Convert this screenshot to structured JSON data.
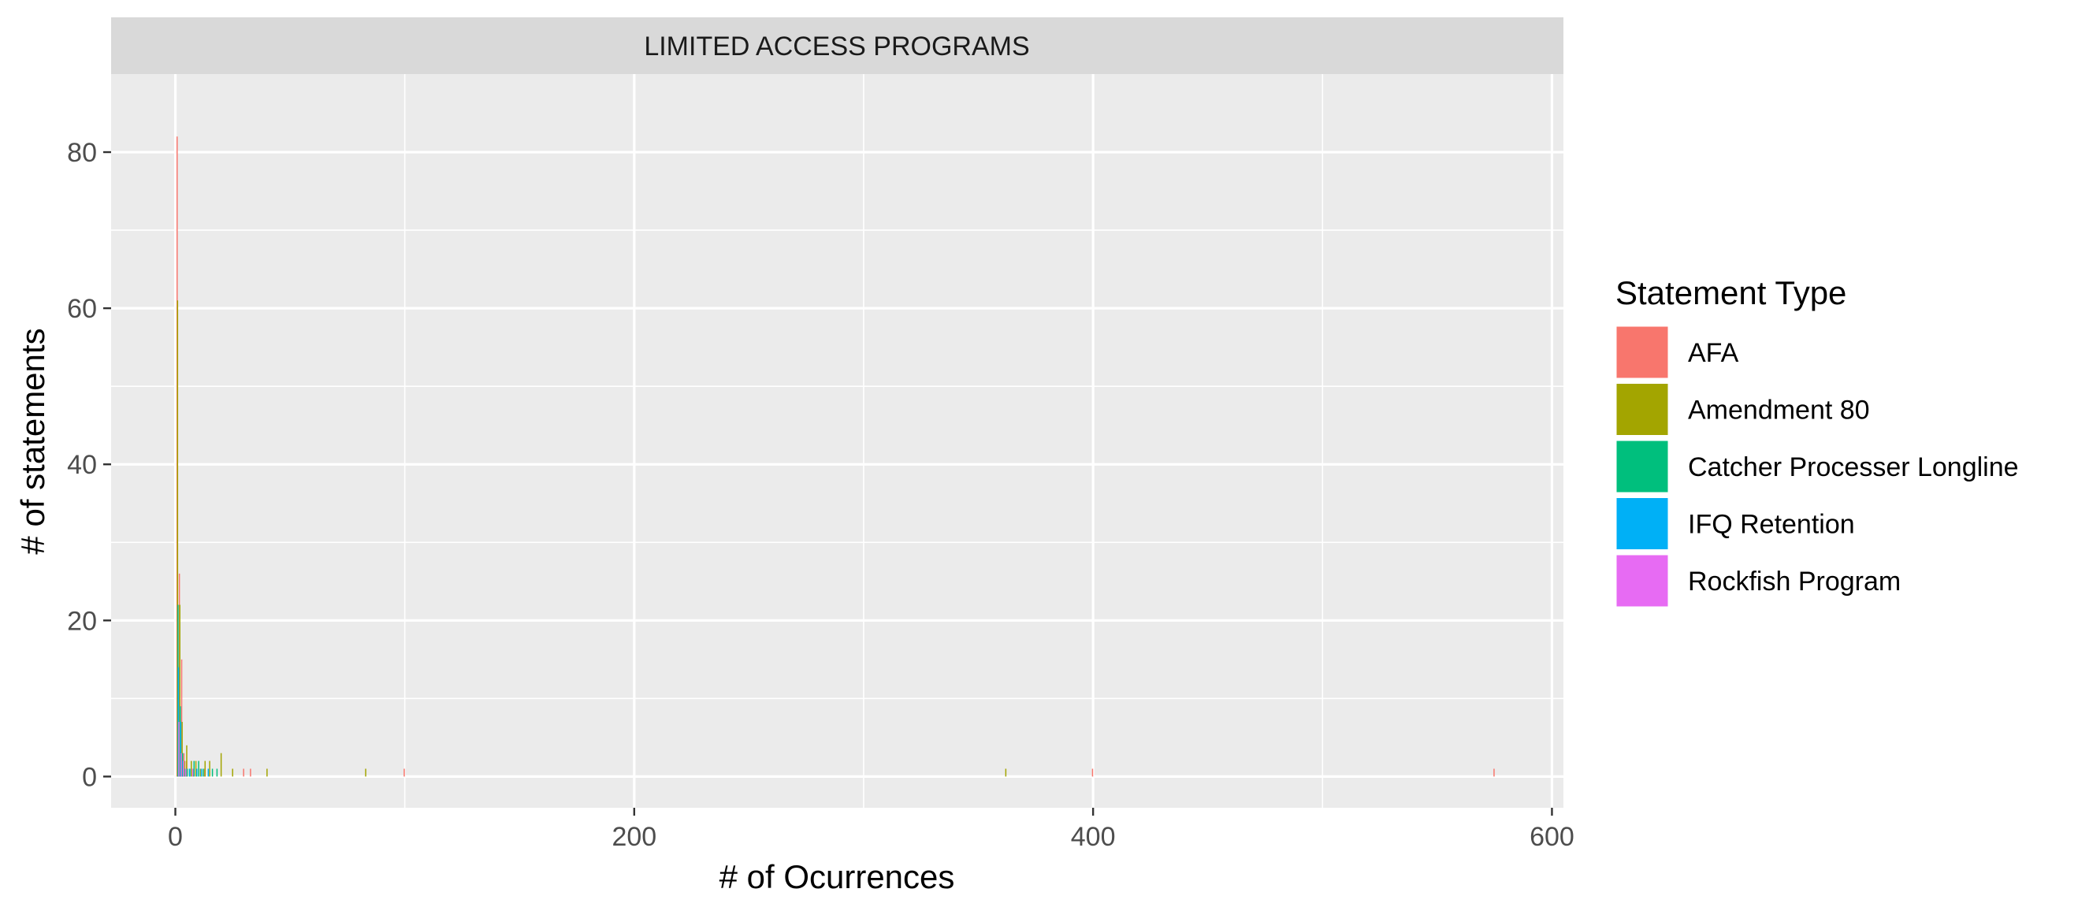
{
  "chart_data": {
    "type": "bar",
    "subtype": "histogram",
    "facet_label": "LIMITED ACCESS PROGRAMS",
    "xlabel": "# of Ocurrences",
    "ylabel": "# of statements",
    "xlim": [
      -28,
      605
    ],
    "ylim": [
      -4,
      90
    ],
    "x_ticks": [
      0,
      200,
      400,
      600
    ],
    "x_tick_labels": [
      "0",
      "200",
      "400",
      "600"
    ],
    "y_ticks": [
      0,
      20,
      40,
      60,
      80
    ],
    "y_tick_labels": [
      "0",
      "20",
      "40",
      "60",
      "80"
    ],
    "bin_width": 1,
    "grid": true,
    "legend": {
      "title": "Statement Type",
      "placement": "right",
      "entries": [
        "AFA",
        "Amendment 80",
        "Catcher Processer Longline",
        "IFQ Retention",
        "Rockfish Program"
      ]
    },
    "series": [
      {
        "name": "AFA",
        "color": "#F8766D",
        "bars": [
          {
            "x": 1,
            "y": 82
          },
          {
            "x": 2,
            "y": 26
          },
          {
            "x": 3,
            "y": 15
          },
          {
            "x": 4,
            "y": 3
          },
          {
            "x": 5,
            "y": 2
          },
          {
            "x": 8,
            "y": 1
          },
          {
            "x": 13,
            "y": 1
          },
          {
            "x": 30,
            "y": 1
          },
          {
            "x": 33,
            "y": 1
          },
          {
            "x": 100,
            "y": 1
          },
          {
            "x": 400,
            "y": 1
          },
          {
            "x": 575,
            "y": 1
          }
        ]
      },
      {
        "name": "Amendment 80",
        "color": "#A3A500",
        "bars": [
          {
            "x": 1,
            "y": 61
          },
          {
            "x": 2,
            "y": 22
          },
          {
            "x": 3,
            "y": 7
          },
          {
            "x": 4,
            "y": 2
          },
          {
            "x": 5,
            "y": 4
          },
          {
            "x": 7,
            "y": 2
          },
          {
            "x": 9,
            "y": 2
          },
          {
            "x": 11,
            "y": 1
          },
          {
            "x": 13,
            "y": 2
          },
          {
            "x": 15,
            "y": 2
          },
          {
            "x": 20,
            "y": 3
          },
          {
            "x": 25,
            "y": 1
          },
          {
            "x": 40,
            "y": 1
          },
          {
            "x": 83,
            "y": 1
          },
          {
            "x": 362,
            "y": 1
          }
        ]
      },
      {
        "name": "Catcher Processer Longline",
        "color": "#00BF7D",
        "bars": [
          {
            "x": 1,
            "y": 22
          },
          {
            "x": 2,
            "y": 9
          },
          {
            "x": 3,
            "y": 3
          },
          {
            "x": 5,
            "y": 1
          },
          {
            "x": 6,
            "y": 1
          },
          {
            "x": 8,
            "y": 2
          },
          {
            "x": 10,
            "y": 2
          },
          {
            "x": 12,
            "y": 1
          },
          {
            "x": 16,
            "y": 1
          },
          {
            "x": 18,
            "y": 1
          }
        ]
      },
      {
        "name": "IFQ Retention",
        "color": "#00B0F6",
        "bars": [
          {
            "x": 1,
            "y": 14
          },
          {
            "x": 2,
            "y": 7
          },
          {
            "x": 3,
            "y": 2
          },
          {
            "x": 4,
            "y": 1
          },
          {
            "x": 6,
            "y": 1
          },
          {
            "x": 9,
            "y": 1
          },
          {
            "x": 11,
            "y": 1
          },
          {
            "x": 14,
            "y": 1
          }
        ]
      },
      {
        "name": "Rockfish Program",
        "color": "#E76BF3",
        "bars": [
          {
            "x": 1,
            "y": 7
          },
          {
            "x": 2,
            "y": 3
          },
          {
            "x": 3,
            "y": 2
          },
          {
            "x": 4,
            "y": 1
          },
          {
            "x": 7,
            "y": 1
          }
        ]
      }
    ]
  }
}
